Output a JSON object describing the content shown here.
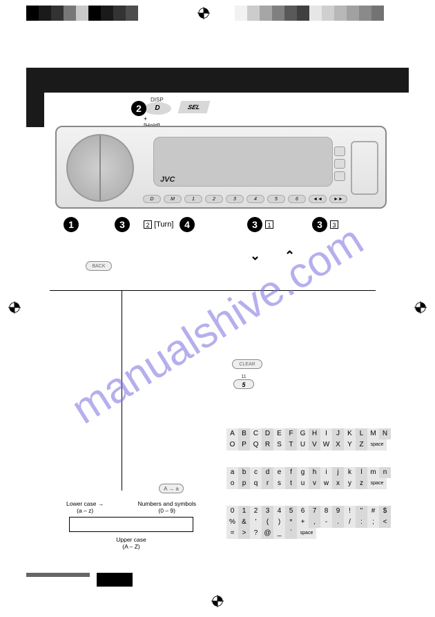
{
  "colorbar_left": [
    "#000000",
    "#1a1a1a",
    "#333333",
    "#777777",
    "#c8c8c8",
    "#000000",
    "#1a1a1a",
    "#333333",
    "#4d4d4d"
  ],
  "colorbar_right": [
    "#f2f2f2",
    "#cccccc",
    "#a6a6a6",
    "#808080",
    "#595959",
    "#404040",
    "#e6e6e6",
    "#cfcfcf",
    "#b8b8b8",
    "#a1a1a1",
    "#8a8a8a",
    "#737373"
  ],
  "labels": {
    "disp": "DISP",
    "d": "D",
    "hold": "[Hold]",
    "plus": "+",
    "sel": "SEL",
    "jvc": "JVC",
    "turn": "[Turn]",
    "back": "BACK",
    "clear": "CLEAR",
    "n11": "11",
    "btn5": "5",
    "aa": "A → a",
    "lower_case": "Lower case",
    "lower_range": "(a – z)",
    "num_sym": "Numbers and symbols",
    "num_range": "(0 – 9)",
    "upper_case": "Upper case",
    "upper_range": "(A – Z)",
    "space": "space"
  },
  "device_buttons": [
    "D",
    "M",
    "1",
    "2",
    "3",
    "4",
    "5",
    "6",
    "◄◄",
    "►►"
  ],
  "callouts": {
    "n1": "1",
    "n2": "2",
    "n3": "3",
    "n4": "4"
  },
  "sqboxes": {
    "b2": "2",
    "b1": "1",
    "b3": "3"
  },
  "chevrons": {
    "down": "⌄",
    "up": "⌃"
  },
  "chars_upper": [
    [
      "A",
      "B",
      "C",
      "D",
      "E",
      "F",
      "G",
      "H",
      "I",
      "J",
      "K",
      "L",
      "M",
      "N"
    ],
    [
      "O",
      "P",
      "Q",
      "R",
      "S",
      "T",
      "U",
      "V",
      "W",
      "X",
      "Y",
      "Z"
    ]
  ],
  "chars_lower": [
    [
      "a",
      "b",
      "c",
      "d",
      "e",
      "f",
      "g",
      "h",
      "i",
      "j",
      "k",
      "l",
      "m",
      "n"
    ],
    [
      "o",
      "p",
      "q",
      "r",
      "s",
      "t",
      "u",
      "v",
      "w",
      "x",
      "y",
      "z"
    ]
  ],
  "chars_sym": [
    [
      "0",
      "1",
      "2",
      "3",
      "4",
      "5",
      "6",
      "7",
      "8",
      "9",
      "!",
      "\"",
      "#",
      "$"
    ],
    [
      "%",
      "&",
      "'",
      "(",
      ")",
      "*",
      "+",
      ",",
      "-",
      ".",
      "/",
      ":",
      ";",
      "<"
    ],
    [
      "=",
      ">",
      "?",
      "@",
      "_",
      "`"
    ]
  ],
  "watermark": "manualshive.com"
}
